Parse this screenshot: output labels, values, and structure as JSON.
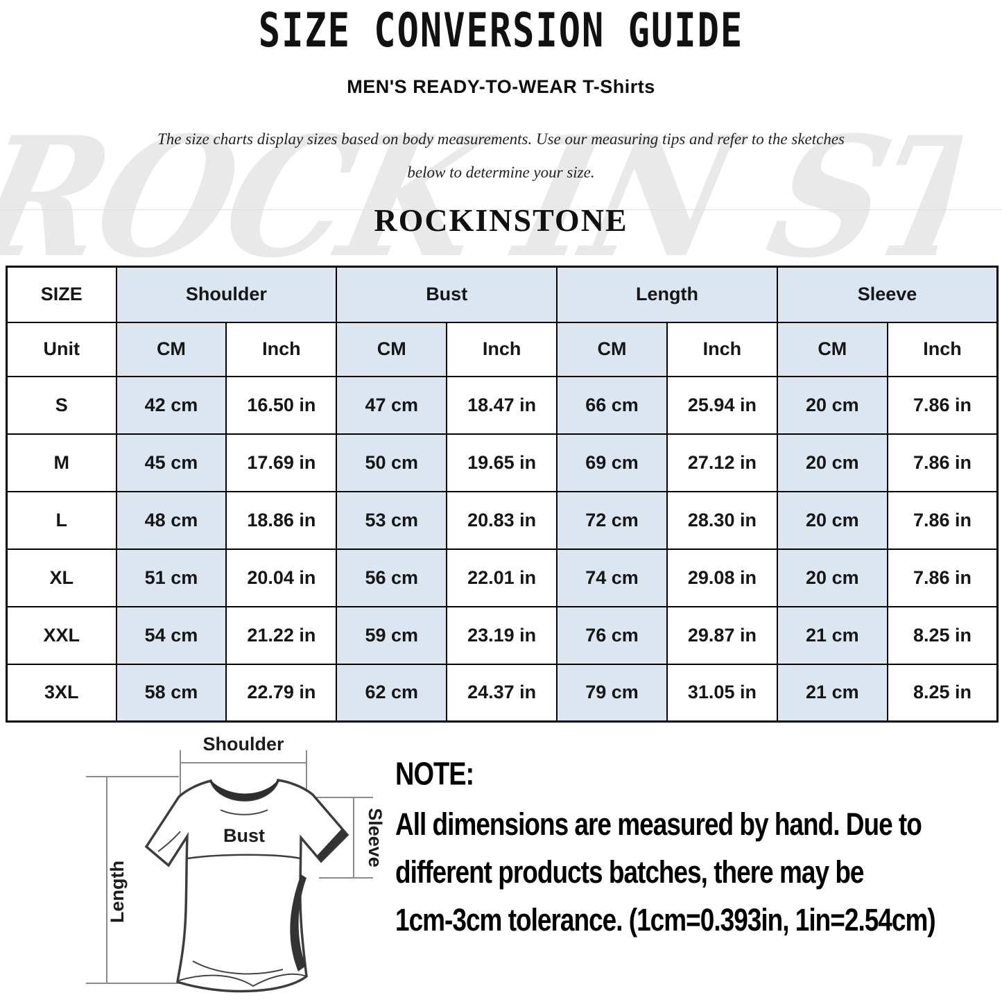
{
  "page": {
    "title": "SIZE CONVERSION GUIDE",
    "subtitle": "MEN'S READY-TO-WEAR T-Shirts",
    "description_line1": "The size charts display sizes based on body measurements. Use our measuring tips and refer to the sketches",
    "description_line2": "below to determine your size.",
    "brand": "ROCKINSTONE",
    "watermark": "ROCK IN STONE"
  },
  "size_table": {
    "group_headers": [
      {
        "label": "SIZE",
        "colspan": 1
      },
      {
        "label": "Shoulder",
        "colspan": 2
      },
      {
        "label": "Bust",
        "colspan": 2
      },
      {
        "label": "Length",
        "colspan": 2
      },
      {
        "label": "Sleeve",
        "colspan": 2
      }
    ],
    "unit_row": [
      "Unit",
      "CM",
      "Inch",
      "CM",
      "Inch",
      "CM",
      "Inch",
      "CM",
      "Inch"
    ],
    "rows": [
      [
        "S",
        "42 cm",
        "16.50 in",
        "47 cm",
        "18.47 in",
        "66 cm",
        "25.94 in",
        "20 cm",
        "7.86 in"
      ],
      [
        "M",
        "45 cm",
        "17.69 in",
        "50 cm",
        "19.65 in",
        "69 cm",
        "27.12 in",
        "20 cm",
        "7.86 in"
      ],
      [
        "L",
        "48 cm",
        "18.86 in",
        "53 cm",
        "20.83 in",
        "72 cm",
        "28.30 in",
        "20 cm",
        "7.86 in"
      ],
      [
        "XL",
        "51 cm",
        "20.04 in",
        "56 cm",
        "22.01 in",
        "74 cm",
        "29.08 in",
        "20 cm",
        "7.86 in"
      ],
      [
        "XXL",
        "54 cm",
        "21.22 in",
        "59 cm",
        "23.19 in",
        "76 cm",
        "29.87 in",
        "21 cm",
        "8.25 in"
      ],
      [
        "3XL",
        "58 cm",
        "22.79 in",
        "62 cm",
        "24.37 in",
        "79 cm",
        "31.05 in",
        "21 cm",
        "8.25 in"
      ]
    ],
    "cm_column_color": "#dce6f1",
    "border_color": "#000000"
  },
  "diagram": {
    "labels": {
      "shoulder": "Shoulder",
      "bust": "Bust",
      "length": "Length",
      "sleeve": "Sleeve"
    }
  },
  "note": {
    "heading": "NOTE:",
    "lines": [
      "All dimensions are measured by hand. Due to",
      "different products batches, there may be",
      "1cm-3cm tolerance. (1cm=0.393in, 1in=2.54cm)"
    ]
  }
}
